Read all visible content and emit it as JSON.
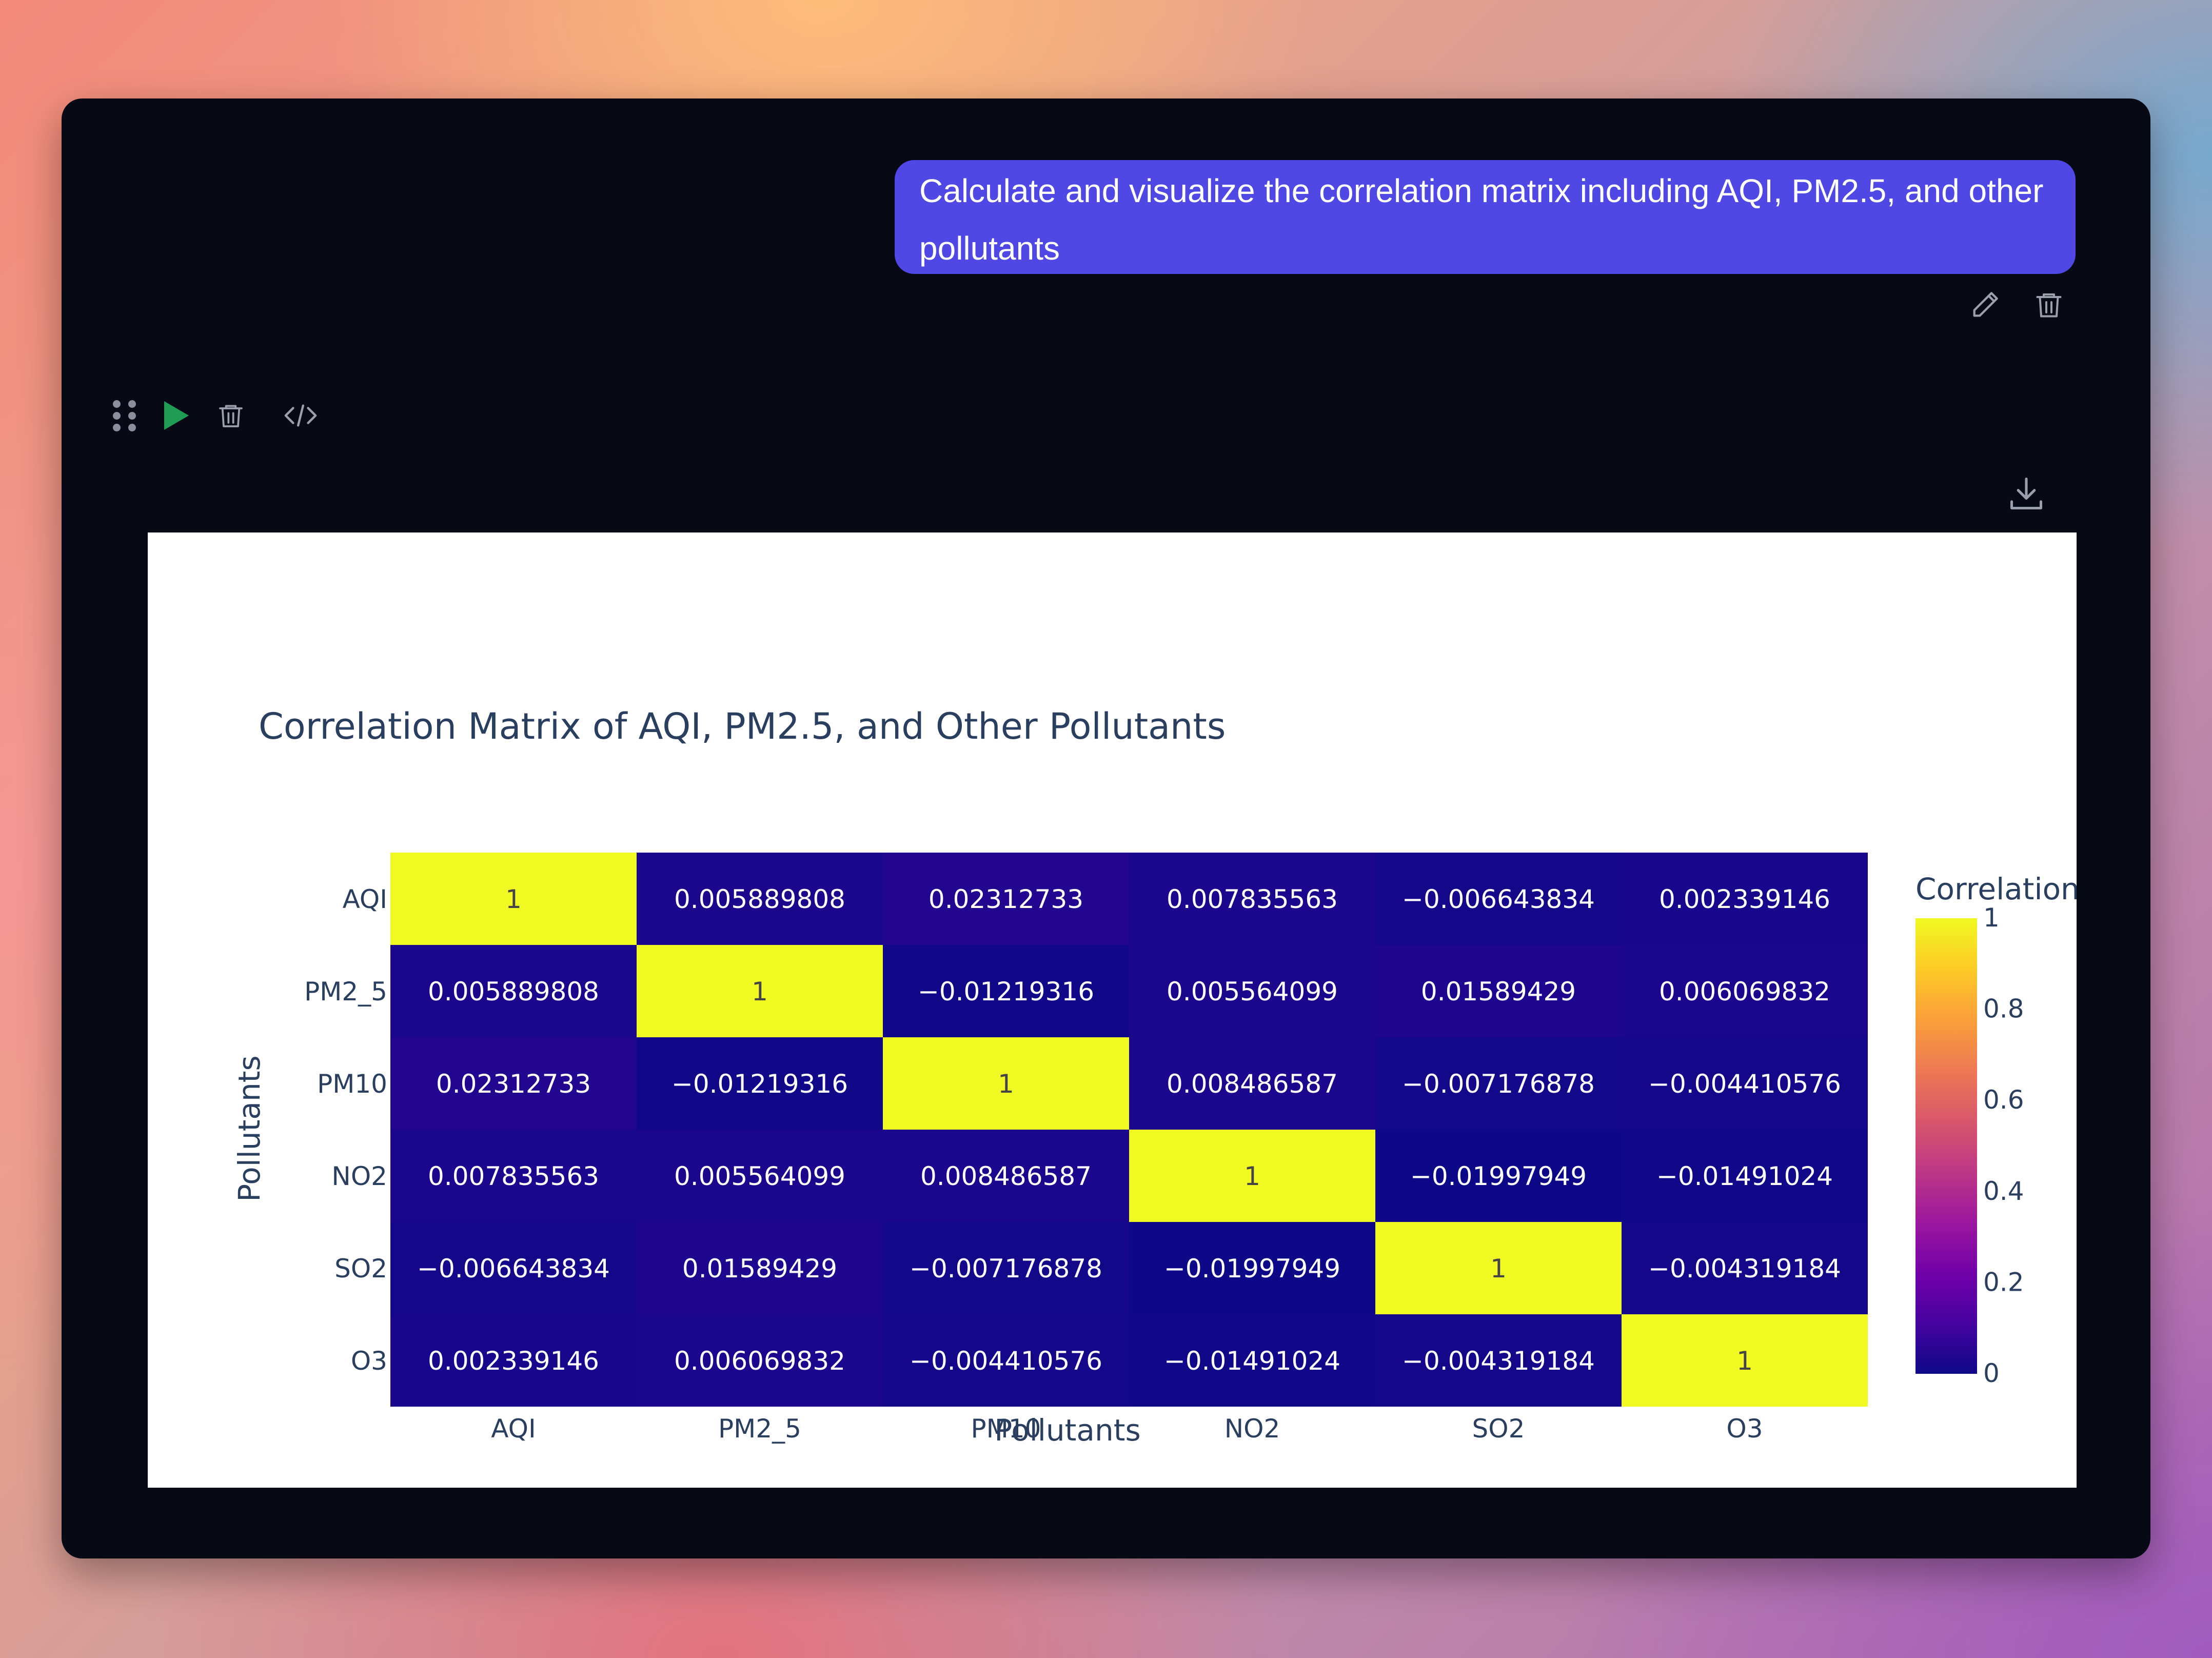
{
  "chat": {
    "user_message": "Calculate and visualize the correlation matrix including AQI, PM2.5, and other pollutants"
  },
  "icons": {
    "edit": "pencil-icon",
    "delete_message": "trash-icon",
    "drag": "drag-handle-icon",
    "run": "play-icon",
    "delete_cell": "trash-icon",
    "code": "code-icon",
    "download": "download-icon"
  },
  "colors": {
    "bubble": "#5048e5",
    "window": "#070a14",
    "run": "#1f9d55",
    "panel": "#ffffff"
  },
  "chart_data": {
    "type": "heatmap",
    "title": "Correlation Matrix of AQI, PM2.5, and Other Pollutants",
    "xlabel": "Pollutants",
    "ylabel": "Pollutants",
    "x": [
      "AQI",
      "PM2_5",
      "PM10",
      "NO2",
      "SO2",
      "O3"
    ],
    "y": [
      "AQI",
      "PM2_5",
      "PM10",
      "NO2",
      "SO2",
      "O3"
    ],
    "z": [
      [
        1,
        0.005889808,
        0.02312733,
        0.007835563,
        -0.006643834,
        0.002339146
      ],
      [
        0.005889808,
        1,
        -0.01219316,
        0.005564099,
        0.01589429,
        0.006069832
      ],
      [
        0.02312733,
        -0.01219316,
        1,
        0.008486587,
        -0.007176878,
        -0.004410576
      ],
      [
        0.007835563,
        0.005564099,
        0.008486587,
        1,
        -0.01997949,
        -0.01491024
      ],
      [
        -0.006643834,
        0.01589429,
        -0.007176878,
        -0.01997949,
        1,
        -0.004319184
      ],
      [
        0.002339146,
        0.006069832,
        -0.004410576,
        -0.01491024,
        -0.004319184,
        1
      ]
    ],
    "colorscale": "Plasma",
    "colorbar": {
      "title": "Correlation",
      "ticks": [
        "1",
        "0.8",
        "0.6",
        "0.4",
        "0.2",
        "0"
      ],
      "range": [
        -0.01997949,
        1
      ]
    },
    "legend": "right"
  }
}
